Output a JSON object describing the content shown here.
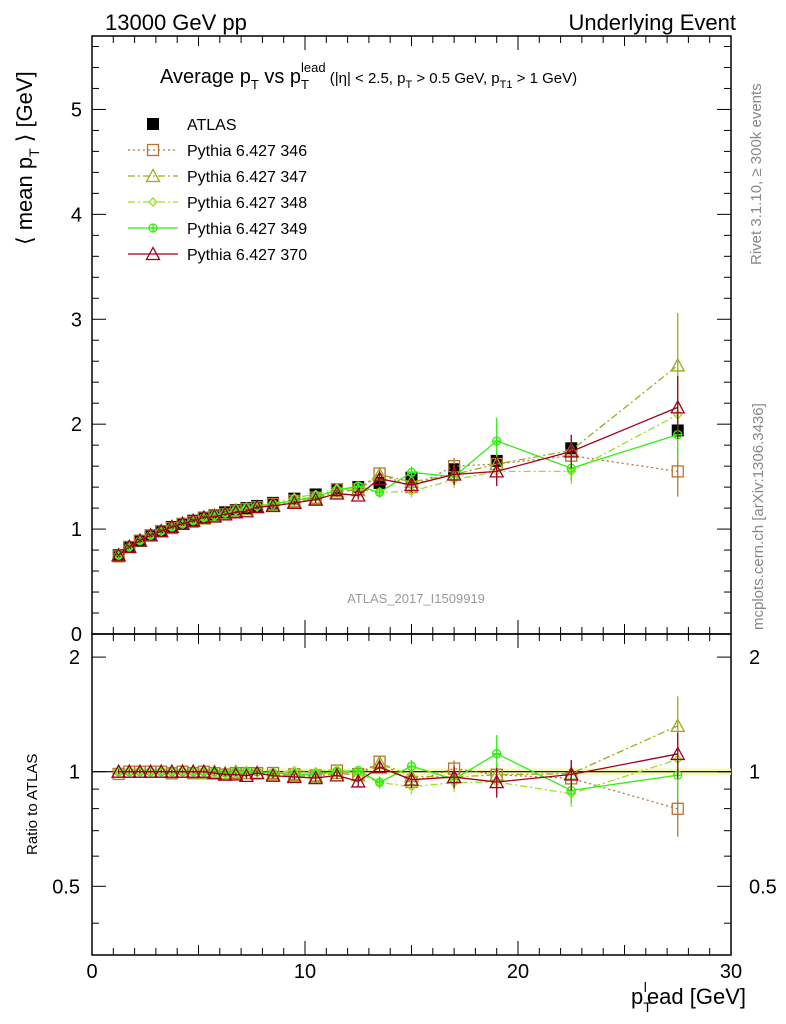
{
  "header": {
    "left": "13000 GeV pp",
    "right": "Underlying Event"
  },
  "side_labels": {
    "rivet": "Rivet 3.1.10, ≥ 300k events",
    "mcplots": "mcplots.cern.ch [arXiv:1306.3436]"
  },
  "watermark": "ATLAS_2017_I1509919",
  "chart_data": {
    "type": "scatter",
    "title": "Average p_T vs p_T^lead (|η| < 2.5, p_T > 0.5 GeV, p_T1 > 1 GeV)",
    "title_parts": {
      "t1": "Average p",
      "t1sub": "T",
      "t2": " vs p",
      "t2sub": "T",
      "t2sup": "lead",
      "t3": " (|η| < 2.5, p",
      "t3sub": "T",
      "t4": " > 0.5 GeV, p",
      "t4sub": "T1",
      "t5": " > 1 GeV)"
    },
    "ylabel_parts": {
      "a": "⟨ mean p",
      "sub": "T",
      "b": " ⟩ [GeV]"
    },
    "xlabel_parts": {
      "a": "p",
      "sub": "T",
      "sup": "l",
      "b": "ead [GeV]"
    },
    "ratio_ylabel": "Ratio to ATLAS",
    "xlim": [
      0,
      30
    ],
    "ylim": [
      0,
      5.7
    ],
    "ratio_ylim": [
      0.33,
      2.3
    ],
    "ratio_log": true,
    "main_ticks": [
      "0",
      "1",
      "2",
      "3",
      "4",
      "5"
    ],
    "x_ticks": [
      "0",
      "10",
      "20",
      "30"
    ],
    "ratio_ticks": [
      "0.5",
      "1",
      "2"
    ],
    "legend_position": "top-left",
    "x": [
      1.25,
      1.75,
      2.25,
      2.75,
      3.25,
      3.75,
      4.25,
      4.75,
      5.25,
      5.75,
      6.25,
      6.75,
      7.25,
      7.75,
      8.5,
      9.5,
      10.5,
      11.5,
      12.5,
      13.5,
      15,
      17,
      19,
      22.5,
      27.5
    ],
    "atlas": {
      "name": "ATLAS",
      "color": "#000000",
      "values": [
        0.75,
        0.83,
        0.89,
        0.94,
        0.98,
        1.02,
        1.05,
        1.08,
        1.11,
        1.13,
        1.16,
        1.18,
        1.2,
        1.22,
        1.25,
        1.29,
        1.33,
        1.37,
        1.4,
        1.44,
        1.49,
        1.57,
        1.65,
        1.77,
        1.94
      ],
      "errors": [
        0.01,
        0.01,
        0.01,
        0.01,
        0.01,
        0.01,
        0.01,
        0.01,
        0.01,
        0.01,
        0.01,
        0.01,
        0.01,
        0.01,
        0.01,
        0.01,
        0.01,
        0.01,
        0.01,
        0.02,
        0.02,
        0.03,
        0.04,
        0.05,
        0.06
      ]
    },
    "series": [
      {
        "name": "Pythia 6.427 346",
        "color": "#b87333",
        "dash": "2,3",
        "marker": "square",
        "values": [
          0.74,
          0.83,
          0.89,
          0.94,
          0.98,
          1.01,
          1.05,
          1.07,
          1.11,
          1.12,
          1.14,
          1.17,
          1.19,
          1.21,
          1.24,
          1.27,
          1.3,
          1.38,
          1.38,
          1.53,
          1.4,
          1.6,
          1.62,
          1.7,
          1.55
        ],
        "errors": [
          0.01,
          0.01,
          0.01,
          0.01,
          0.01,
          0.01,
          0.01,
          0.01,
          0.01,
          0.01,
          0.01,
          0.01,
          0.02,
          0.02,
          0.02,
          0.02,
          0.03,
          0.03,
          0.04,
          0.05,
          0.06,
          0.08,
          0.1,
          0.12,
          0.24
        ]
      },
      {
        "name": "Pythia 6.427 347",
        "color": "#9aad1c",
        "dash": "7,3,2,3",
        "marker": "triangle",
        "values": [
          0.75,
          0.83,
          0.89,
          0.94,
          0.98,
          1.02,
          1.05,
          1.08,
          1.1,
          1.13,
          1.15,
          1.18,
          1.19,
          1.21,
          1.23,
          1.26,
          1.29,
          1.36,
          1.37,
          1.52,
          1.45,
          1.52,
          1.62,
          1.75,
          2.56
        ],
        "errors": [
          0.01,
          0.01,
          0.01,
          0.01,
          0.01,
          0.01,
          0.01,
          0.01,
          0.01,
          0.01,
          0.01,
          0.01,
          0.02,
          0.02,
          0.02,
          0.02,
          0.03,
          0.03,
          0.04,
          0.05,
          0.06,
          0.08,
          0.1,
          0.14,
          0.5
        ]
      },
      {
        "name": "Pythia 6.427 348",
        "color": "#99e02a",
        "dash": "7,3,2,3",
        "marker": "diamond",
        "values": [
          0.75,
          0.83,
          0.89,
          0.94,
          0.98,
          1.02,
          1.05,
          1.08,
          1.11,
          1.12,
          1.15,
          1.17,
          1.2,
          1.21,
          1.24,
          1.3,
          1.33,
          1.39,
          1.38,
          1.35,
          1.36,
          1.47,
          1.55,
          1.55,
          2.09
        ],
        "errors": [
          0.01,
          0.01,
          0.01,
          0.01,
          0.01,
          0.01,
          0.01,
          0.01,
          0.01,
          0.01,
          0.01,
          0.01,
          0.02,
          0.02,
          0.02,
          0.02,
          0.03,
          0.03,
          0.04,
          0.05,
          0.06,
          0.08,
          0.1,
          0.12,
          0.3
        ]
      },
      {
        "name": "Pythia 6.427 349",
        "color": "#33ee11",
        "dash": "",
        "marker": "circle-plus",
        "values": [
          0.75,
          0.83,
          0.89,
          0.94,
          0.98,
          1.02,
          1.05,
          1.08,
          1.11,
          1.13,
          1.15,
          1.18,
          1.2,
          1.22,
          1.24,
          1.27,
          1.31,
          1.37,
          1.41,
          1.35,
          1.54,
          1.5,
          1.84,
          1.58,
          1.9
        ],
        "errors": [
          0.01,
          0.01,
          0.01,
          0.01,
          0.01,
          0.01,
          0.01,
          0.01,
          0.01,
          0.01,
          0.01,
          0.01,
          0.02,
          0.02,
          0.02,
          0.02,
          0.03,
          0.03,
          0.04,
          0.05,
          0.06,
          0.08,
          0.22,
          0.12,
          0.25
        ]
      },
      {
        "name": "Pythia 6.427 370",
        "color": "#a0001e",
        "dash": "",
        "marker": "triangle",
        "values": [
          0.75,
          0.83,
          0.89,
          0.94,
          0.98,
          1.02,
          1.05,
          1.08,
          1.11,
          1.12,
          1.14,
          1.16,
          1.17,
          1.21,
          1.22,
          1.25,
          1.28,
          1.34,
          1.32,
          1.48,
          1.42,
          1.52,
          1.55,
          1.74,
          2.16
        ],
        "errors": [
          0.01,
          0.01,
          0.01,
          0.01,
          0.01,
          0.01,
          0.01,
          0.01,
          0.01,
          0.01,
          0.01,
          0.01,
          0.02,
          0.02,
          0.02,
          0.02,
          0.03,
          0.03,
          0.04,
          0.05,
          0.07,
          0.1,
          0.14,
          0.16,
          0.3
        ]
      }
    ]
  }
}
